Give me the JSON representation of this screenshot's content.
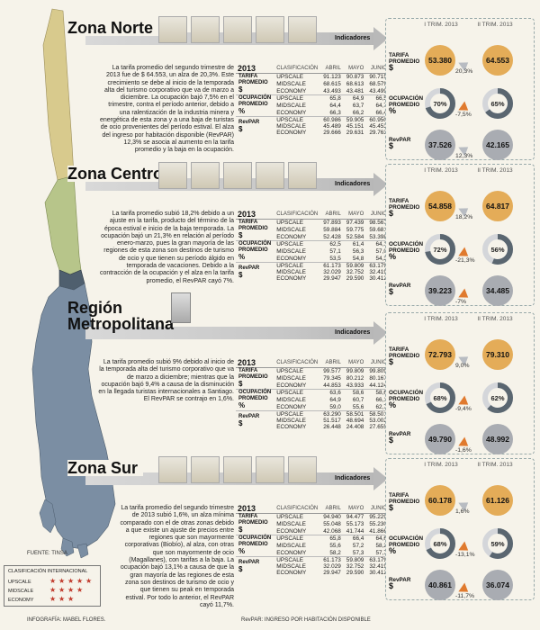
{
  "zones": [
    {
      "key": "norte",
      "title": "Zona Norte",
      "indicators_label": "Indicadores",
      "description": "La tarifa promedio del segundo trimestre de 2013 fue de $ 64.553, un alza de 20,3%. Este crecimiento se debe al inicio de la temporada alta del turismo corporativo que va de marzo a diciembre. La ocupación bajó 7,5% en el trimestre, contra el período anterior, debido a una ralentización de la industria minera y energética de esta zona y a una baja de turistas de ocio provenientes del período estival. El alza del ingreso por habitación disponible (RevPAR) 12,3% se asocia al aumento en la tarifa promedio y la baja en la ocupación.",
      "table": {
        "year": "2013",
        "headers": [
          "CLASIFICACIÓN",
          "ABRIL",
          "MAYO",
          "JUNIO"
        ],
        "groups": [
          {
            "label": "TARIFA PROMEDIO",
            "symbol": "$",
            "rows": [
              [
                "UPSCALE",
                "91.123",
                "90.873",
                "90.715"
              ],
              [
                "MIDSCALE",
                "68.615",
                "68.613",
                "68.579"
              ],
              [
                "ECONOMY",
                "43.493",
                "43.481",
                "43.499"
              ]
            ]
          },
          {
            "label": "OCUPACIÓN PROMEDIO",
            "symbol": "%",
            "rows": [
              [
                "UPSCALE",
                "65,8",
                "64,9",
                "66,5"
              ],
              [
                "MIDSCALE",
                "64,4",
                "63,7",
                "64,7"
              ],
              [
                "ECONOMY",
                "66,3",
                "66,2",
                "66,4"
              ]
            ]
          },
          {
            "label": "RevPAR",
            "symbol": "$",
            "rows": [
              [
                "UPSCALE",
                "60.986",
                "59.905",
                "60.950"
              ],
              [
                "MIDSCALE",
                "45.489",
                "45.151",
                "45.453"
              ],
              [
                "ECONOMY",
                "29.666",
                "29.631",
                "29.763"
              ]
            ]
          }
        ]
      },
      "panel": {
        "q1_label": "I TRIM. 2013",
        "q2_label": "II TRIM. 2013",
        "tarifa": {
          "label": "TARIFA PROMEDIO",
          "symbol": "$",
          "q1": "53.380",
          "q2": "64.553",
          "change": "20,3%"
        },
        "ocupacion": {
          "label": "OCUPACIÓN PROMEDIO",
          "symbol": "%",
          "q1": "70%",
          "q2": "65%",
          "change": "-7,5%"
        },
        "revpar": {
          "label": "RevPAR",
          "symbol": "$",
          "q1": "37.526",
          "q2": "42.165",
          "change": "12,3%"
        }
      }
    },
    {
      "key": "centro",
      "title": "Zona Centro",
      "indicators_label": "Indicadores",
      "description": "La tarifa promedio subió 18,2% debido a un ajuste en la tarifa, producto del término de la época estival e inicio de la baja temporada. La ocupación bajó un 21,3% en relación al período enero-marzo, pues la gran mayoría de las regiones de esta zona son destinos de turismo de ocio y que tienen su período álgido en temporada de vacaciones. Debido a la contracción de la ocupación y el alza en la tarifa promedio, el RevPAR cayó 7%.",
      "table": {
        "year": "2013",
        "headers": [
          "CLASIFICACIÓN",
          "ABRIL",
          "MAYO",
          "JUNIO"
        ],
        "groups": [
          {
            "label": "TARIFA PROMEDIO",
            "symbol": "$",
            "rows": [
              [
                "UPSCALE",
                "97.893",
                "97.439",
                "98.567"
              ],
              [
                "MIDSCALE",
                "59.884",
                "59.775",
                "59.681"
              ],
              [
                "ECONOMY",
                "52.428",
                "52.584",
                "53.398"
              ]
            ]
          },
          {
            "label": "OCUPACIÓN PROMEDIO",
            "symbol": "%",
            "rows": [
              [
                "UPSCALE",
                "62,5",
                "61,4",
                "64,1"
              ],
              [
                "MIDSCALE",
                "57,1",
                "56,3",
                "57,0"
              ],
              [
                "ECONOMY",
                "53,5",
                "54,8",
                "54,3"
              ]
            ]
          },
          {
            "label": "RevPAR",
            "symbol": "$",
            "rows": [
              [
                "UPSCALE",
                "61.173",
                "59.809",
                "63.179"
              ],
              [
                "MIDSCALE",
                "32.029",
                "32.752",
                "32.419"
              ],
              [
                "ECONOMY",
                "29.947",
                "29.590",
                "30.412"
              ]
            ]
          }
        ]
      },
      "panel": {
        "q1_label": "I TRIM. 2013",
        "q2_label": "II TRIM. 2013",
        "tarifa": {
          "label": "TARIFA PROMEDIO",
          "symbol": "$",
          "q1": "54.858",
          "q2": "64.817",
          "change": "18,2%"
        },
        "ocupacion": {
          "label": "OCUPACIÓN PROMEDIO",
          "symbol": "%",
          "q1": "72%",
          "q2": "56%",
          "change": "-21,3%"
        },
        "revpar": {
          "label": "RevPAR",
          "symbol": "$",
          "q1": "39.223",
          "q2": "34.485",
          "change": "-7%"
        }
      }
    },
    {
      "key": "metropolitana",
      "title": "Región Metropolitana",
      "title_line1": "Región",
      "title_line2": "Metropolitana",
      "indicators_label": "Indicadores",
      "description": "La tarifa promedio subió 9% debido al inicio de la temporada alta del turismo corporativo que va de marzo a diciembre; mientras que la ocupación bajó 9,4% a causa de la disminución en la llegada turistas internacionales a Santiago. El RevPAR se contrajo en 1,6%.",
      "table": {
        "year": "2013",
        "headers": [
          "CLASIFICACIÓN",
          "ABRIL",
          "MAYO",
          "JUNIO"
        ],
        "groups": [
          {
            "label": "TARIFA PROMEDIO",
            "symbol": "$",
            "rows": [
              [
                "UPSCALE",
                "99.577",
                "99.809",
                "99.809"
              ],
              [
                "MIDSCALE",
                "79.345",
                "80.212",
                "80.167"
              ],
              [
                "ECONOMY",
                "44.853",
                "43.933",
                "44.124"
              ]
            ]
          },
          {
            "label": "OCUPACIÓN PROMEDIO",
            "symbol": "%",
            "rows": [
              [
                "UPSCALE",
                "63,6",
                "58,6",
                "58,6"
              ],
              [
                "MIDSCALE",
                "64,9",
                "60,7",
                "66,1"
              ],
              [
                "ECONOMY",
                "59,0",
                "55,6",
                "62,7"
              ]
            ]
          },
          {
            "label": "RevPAR",
            "symbol": "$",
            "rows": [
              [
                "UPSCALE",
                "63.290",
                "58.501",
                "58.501"
              ],
              [
                "MIDSCALE",
                "51.517",
                "48.694",
                "53.002"
              ],
              [
                "ECONOMY",
                "26.448",
                "24.408",
                "27.655"
              ]
            ]
          }
        ]
      },
      "panel": {
        "q1_label": "I TRIM. 2013",
        "q2_label": "II TRIM. 2013",
        "tarifa": {
          "label": "TARIFA PROMEDIO",
          "symbol": "$",
          "q1": "72.793",
          "q2": "79.310",
          "change": "9,0%"
        },
        "ocupacion": {
          "label": "OCUPACIÓN PROMEDIO",
          "symbol": "%",
          "q1": "68%",
          "q2": "62%",
          "change": "-9,4%"
        },
        "revpar": {
          "label": "RevPAR",
          "symbol": "$",
          "q1": "49.790",
          "q2": "48.992",
          "change": "-1,6%"
        }
      }
    },
    {
      "key": "sur",
      "title": "Zona Sur",
      "indicators_label": "Indicadores",
      "description": "La tarifa promedio del segundo trimestre de 2013 subió 1,6%, un alza mínima comparado con el de otras zonas debido a que existe un ajuste de precios entre regiones que son mayormente corporativas (Biobío), al alza, con otras que son mayormente de ocio (Magallanes), con tarifas a la baja. La ocupación bajó 13,1% a causa de que la gran mayoría de las regiones de esta zona son destinos de turismo de ocio y que tienen su peak en temporada estival. Por todo lo anterior, el RevPAR cayó 11,7%.",
      "table": {
        "year": "2013",
        "headers": [
          "CLASIFICACIÓN",
          "ABRIL",
          "MAYO",
          "JUNIO"
        ],
        "groups": [
          {
            "label": "TARIFA PROMEDIO",
            "symbol": "$",
            "rows": [
              [
                "UPSCALE",
                "94.940",
                "94.477",
                "95.229"
              ],
              [
                "MIDSCALE",
                "55.048",
                "55.173",
                "55.230"
              ],
              [
                "ECONOMY",
                "42.068",
                "41.744",
                "41.866"
              ]
            ]
          },
          {
            "label": "OCUPACIÓN PROMEDIO",
            "symbol": "%",
            "rows": [
              [
                "UPSCALE",
                "65,8",
                "66,4",
                "64,6"
              ],
              [
                "MIDSCALE",
                "55,6",
                "57,2",
                "58,2"
              ],
              [
                "ECONOMY",
                "58,2",
                "57,3",
                "57,7"
              ]
            ]
          },
          {
            "label": "RevPAR",
            "symbol": "$",
            "rows": [
              [
                "UPSCALE",
                "61.173",
                "59.809",
                "63.179"
              ],
              [
                "MIDSCALE",
                "32.029",
                "32.752",
                "32.419"
              ],
              [
                "ECONOMY",
                "29.947",
                "29.590",
                "30.412"
              ]
            ]
          }
        ]
      },
      "panel": {
        "q1_label": "I TRIM. 2013",
        "q2_label": "II TRIM. 2013",
        "tarifa": {
          "label": "TARIFA PROMEDIO",
          "symbol": "$",
          "q1": "60.178",
          "q2": "61.126",
          "change": "1,6%"
        },
        "ocupacion": {
          "label": "OCUPACIÓN PROMEDIO",
          "symbol": "%",
          "q1": "68%",
          "q2": "59%",
          "change": "-13,1%"
        },
        "revpar": {
          "label": "RevPAR",
          "symbol": "$",
          "q1": "40.861",
          "q2": "36.074",
          "change": "-11,7%"
        }
      }
    }
  ],
  "footer": {
    "source": "FUENTE: TINSA",
    "legend_title": "CLASIFICACIÓN INTERNACIONAL",
    "legend_rows": [
      {
        "label": "UPSCALE",
        "stars": 5
      },
      {
        "label": "MIDSCALE",
        "stars": 4
      },
      {
        "label": "ECONOMY",
        "stars": 3
      }
    ],
    "credit": "INFOGRAFÍA: MABEL FLORES.",
    "revpar_note": "RevPAR: INGRESO POR HABITACIÓN DISPONIBLE"
  },
  "colors": {
    "gold": "#e4ac58",
    "gray": "#a9acb2",
    "dark": "#5a6670",
    "map_north": "#d8ca8d",
    "map_center": "#b7c58a",
    "map_south": "#7b8ea3",
    "arrow_orange": "#e07a2e",
    "arrow_gray": "#b8bcc2"
  },
  "chart_data": [
    {
      "type": "pie",
      "zone": "Zona Norte",
      "title": "OCUPACIÓN PROMEDIO %",
      "categories": [
        "I TRIM. 2013",
        "II TRIM. 2013"
      ],
      "values": [
        70,
        65
      ]
    },
    {
      "type": "pie",
      "zone": "Zona Centro",
      "title": "OCUPACIÓN PROMEDIO %",
      "categories": [
        "I TRIM. 2013",
        "II TRIM. 2013"
      ],
      "values": [
        72,
        56
      ]
    },
    {
      "type": "pie",
      "zone": "Región Metropolitana",
      "title": "OCUPACIÓN PROMEDIO %",
      "categories": [
        "I TRIM. 2013",
        "II TRIM. 2013"
      ],
      "values": [
        68,
        62
      ]
    },
    {
      "type": "pie",
      "zone": "Zona Sur",
      "title": "OCUPACIÓN PROMEDIO %",
      "categories": [
        "I TRIM. 2013",
        "II TRIM. 2013"
      ],
      "values": [
        68,
        59
      ]
    }
  ]
}
